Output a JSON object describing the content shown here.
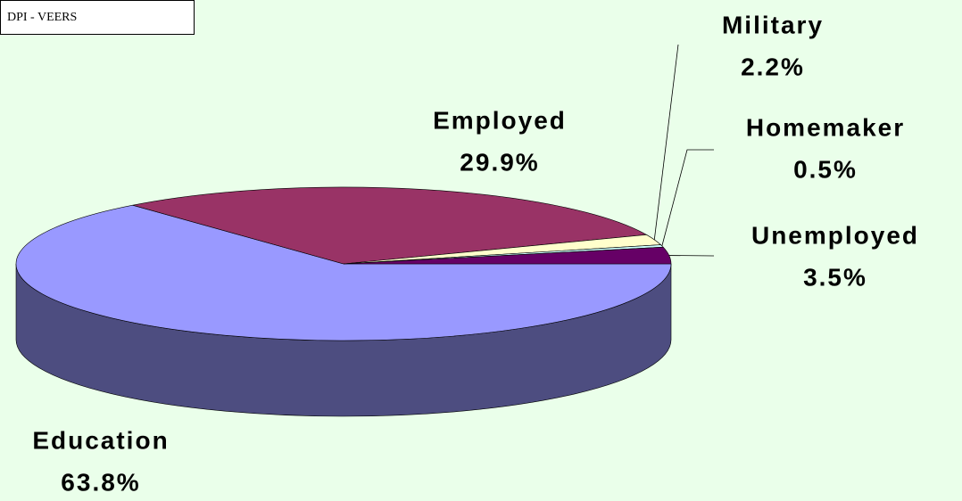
{
  "chart_data": {
    "type": "pie",
    "title": "DPI - VEERS",
    "categories": [
      "Education",
      "Employed",
      "Military",
      "Homemaker",
      "Unemployed"
    ],
    "values": [
      63.8,
      29.9,
      2.2,
      0.5,
      3.5
    ],
    "value_labels": [
      "63.8%",
      "29.9%",
      "2.2%",
      "0.5%",
      "3.5%"
    ],
    "colors": [
      "#9999ff",
      "#993366",
      "#ffffcc",
      "#ccffff",
      "#660066"
    ]
  }
}
